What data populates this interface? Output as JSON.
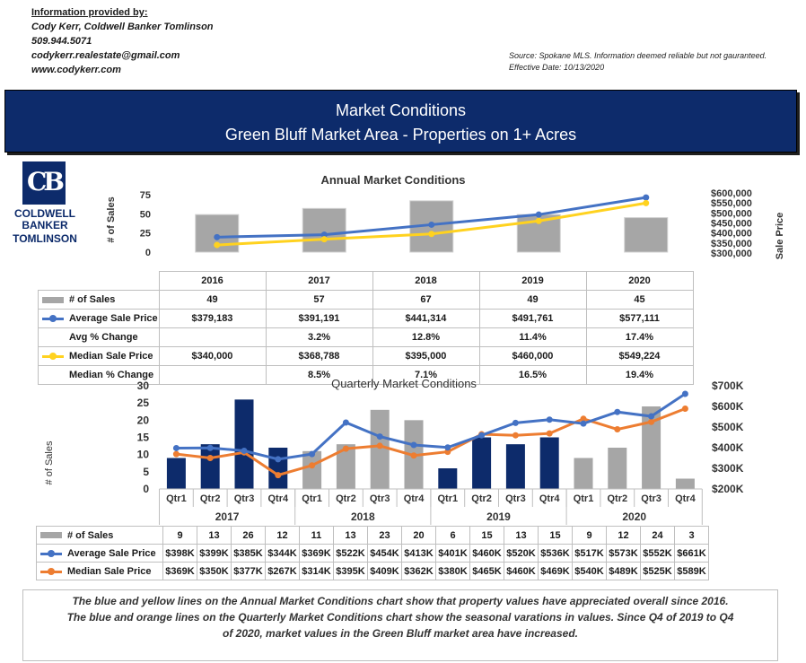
{
  "contact": {
    "heading": "Information provided by:",
    "name": "Cody Kerr, Coldwell Banker Tomlinson",
    "phone": "509.944.5071",
    "email": "codykerr.realestate@gmail.com",
    "web": "www.codykerr.com"
  },
  "source": {
    "line1": "Source: Spokane MLS. Information deemed reliable but not gauranteed.",
    "line2": "Effective Date: 10/13/2020"
  },
  "banner": {
    "line1": "Market Conditions",
    "line2": "Green Bluff Market Area - Properties on 1+ Acres"
  },
  "logo": {
    "mark": "CB",
    "line1": "COLDWELL",
    "line2": "BANKER",
    "line3": "TOMLINSON"
  },
  "colors": {
    "navy": "#0d2b6b",
    "gray_bar": "#a6a6a6",
    "blue_line": "#4472c4",
    "yellow_line": "#ffd21f",
    "orange_line": "#ed7d31"
  },
  "chart_data": [
    {
      "type": "bar",
      "title": "Annual Market Conditions",
      "ylabel": "# of Sales",
      "y2label": "Sale Price",
      "ylim": [
        0,
        75
      ],
      "y_ticks": [
        "0",
        "25",
        "50",
        "75"
      ],
      "y2lim": [
        300000,
        600000
      ],
      "y2_ticks": [
        "$300,000",
        "$350,000",
        "$400,000",
        "$450,000",
        "$500,000",
        "$550,000",
        "$600,000"
      ],
      "categories": [
        "2016",
        "2017",
        "2018",
        "2019",
        "2020"
      ],
      "series": [
        {
          "name": "# of Sales",
          "kind": "bar",
          "color": "#a6a6a6",
          "values": [
            49,
            57,
            67,
            49,
            45
          ],
          "labels": [
            "49",
            "57",
            "67",
            "49",
            "45"
          ]
        },
        {
          "name": "Average Sale Price",
          "kind": "line",
          "color": "#4472c4",
          "values": [
            379183,
            391191,
            441314,
            491761,
            577111
          ],
          "labels": [
            "$379,183",
            "$391,191",
            "$441,314",
            "$491,761",
            "$577,111"
          ]
        },
        {
          "name": "Avg % Change",
          "kind": "table",
          "labels": [
            "",
            "3.2%",
            "12.8%",
            "11.4%",
            "17.4%"
          ]
        },
        {
          "name": "Median Sale Price",
          "kind": "line",
          "color": "#ffd21f",
          "values": [
            340000,
            368788,
            395000,
            460000,
            549224
          ],
          "labels": [
            "$340,000",
            "$368,788",
            "$395,000",
            "$460,000",
            "$549,224"
          ]
        },
        {
          "name": "Median % Change",
          "kind": "table",
          "labels": [
            "",
            "8.5%",
            "7.1%",
            "16.5%",
            "19.4%"
          ]
        }
      ]
    },
    {
      "type": "bar",
      "title": "Quarterly Market Conditions",
      "ylabel": "# of Sales",
      "ylim": [
        0,
        30
      ],
      "y_ticks": [
        "0",
        "5",
        "10",
        "15",
        "20",
        "25",
        "30"
      ],
      "y2lim": [
        200000,
        700000
      ],
      "y2_ticks": [
        "$200K",
        "$300K",
        "$400K",
        "$500K",
        "$600K",
        "$700K"
      ],
      "categories": [
        "Qtr1",
        "Qtr2",
        "Qtr3",
        "Qtr4",
        "Qtr1",
        "Qtr2",
        "Qtr3",
        "Qtr4",
        "Qtr1",
        "Qtr2",
        "Qtr3",
        "Qtr4",
        "Qtr1",
        "Qtr2",
        "Qtr3",
        "Qtr4"
      ],
      "years": [
        "2017",
        "2018",
        "2019",
        "2020"
      ],
      "series": [
        {
          "name": "# of Sales",
          "kind": "bar",
          "colors_by_year": [
            "#0d2b6b",
            "#a6a6a6",
            "#0d2b6b",
            "#a6a6a6"
          ],
          "values": [
            9,
            13,
            26,
            12,
            11,
            13,
            23,
            20,
            6,
            15,
            13,
            15,
            9,
            12,
            24,
            3
          ],
          "labels": [
            "9",
            "13",
            "26",
            "12",
            "11",
            "13",
            "23",
            "20",
            "6",
            "15",
            "13",
            "15",
            "9",
            "12",
            "24",
            "3"
          ]
        },
        {
          "name": "Average Sale Price",
          "kind": "line",
          "color": "#4472c4",
          "values": [
            398000,
            399000,
            385000,
            344000,
            369000,
            522000,
            454000,
            413000,
            401000,
            460000,
            520000,
            536000,
            517000,
            573000,
            552000,
            661000
          ],
          "labels": [
            "$398K",
            "$399K",
            "$385K",
            "$344K",
            "$369K",
            "$522K",
            "$454K",
            "$413K",
            "$401K",
            "$460K",
            "$520K",
            "$536K",
            "$517K",
            "$573K",
            "$552K",
            "$661K"
          ]
        },
        {
          "name": "Median Sale Price",
          "kind": "line",
          "color": "#ed7d31",
          "values": [
            369000,
            350000,
            377000,
            267000,
            314000,
            395000,
            409000,
            362000,
            380000,
            465000,
            460000,
            469000,
            540000,
            489000,
            525000,
            589000
          ],
          "labels": [
            "$369K",
            "$350K",
            "$377K",
            "$267K",
            "$314K",
            "$395K",
            "$409K",
            "$362K",
            "$380K",
            "$465K",
            "$460K",
            "$469K",
            "$540K",
            "$489K",
            "$525K",
            "$589K"
          ]
        }
      ]
    }
  ],
  "note": {
    "line1": "The blue and yellow lines on the Annual Market Conditions chart show that property values have appreciated overall since 2016.",
    "line2": "The blue and orange lines on the Quarterly Market Conditions chart show the seasonal varations in values. Since Q4 of 2019 to Q4",
    "line3": "of 2020, market values in the Green Bluff market area have increased."
  }
}
